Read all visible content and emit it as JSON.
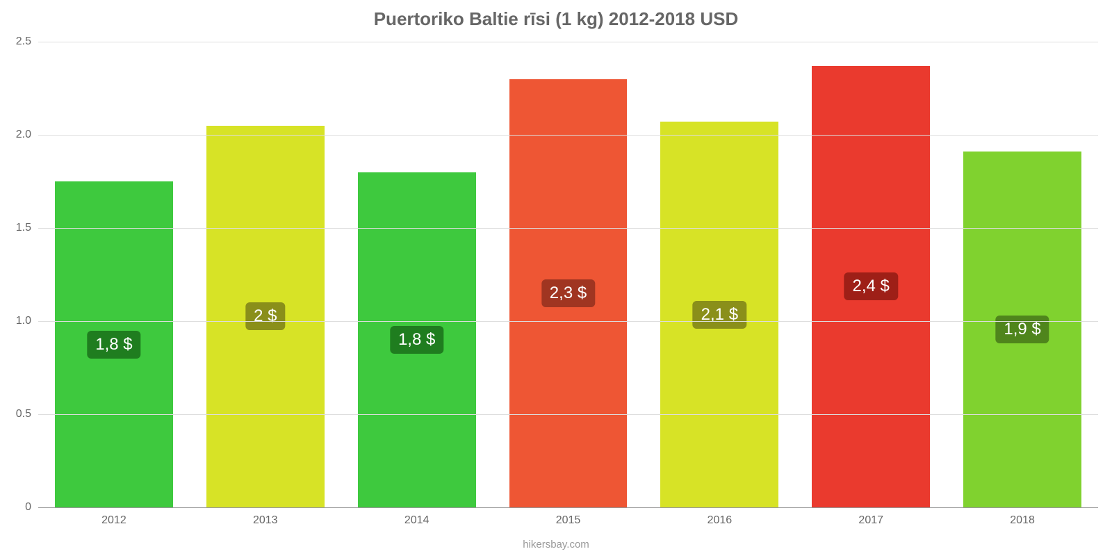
{
  "chart": {
    "type": "bar",
    "title": "Puertoriko Baltie rīsi (1 kg) 2012-2018 USD",
    "title_color": "#666666",
    "title_fontsize": 26,
    "background_color": "#ffffff",
    "grid_color": "#dddddd",
    "axis_color": "#999999",
    "tick_label_color": "#666666",
    "tick_fontsize": 16,
    "bar_label_fontsize": 24,
    "bar_width_ratio": 0.78,
    "ylim": [
      0,
      2.5
    ],
    "yticks": [
      {
        "value": 0,
        "label": "0"
      },
      {
        "value": 0.5,
        "label": "0.5"
      },
      {
        "value": 1.0,
        "label": "1.0"
      },
      {
        "value": 1.5,
        "label": "1.5"
      },
      {
        "value": 2.0,
        "label": "2.0"
      },
      {
        "value": 2.5,
        "label": "2.5"
      }
    ],
    "series": [
      {
        "category": "2012",
        "value": 1.75,
        "label": "1,8 $",
        "bar_color": "#3ec93e",
        "label_bg": "#1f7d1f"
      },
      {
        "category": "2013",
        "value": 2.05,
        "label": "2 $",
        "bar_color": "#d7e326",
        "label_bg": "#8a8f1a"
      },
      {
        "category": "2014",
        "value": 1.8,
        "label": "1,8 $",
        "bar_color": "#3ec93e",
        "label_bg": "#1f7d1f"
      },
      {
        "category": "2015",
        "value": 2.3,
        "label": "2,3 $",
        "bar_color": "#ee5634",
        "label_bg": "#a03521"
      },
      {
        "category": "2016",
        "value": 2.07,
        "label": "2,1 $",
        "bar_color": "#d7e326",
        "label_bg": "#8a8f1a"
      },
      {
        "category": "2017",
        "value": 2.37,
        "label": "2,4 $",
        "bar_color": "#ea3a2e",
        "label_bg": "#9e1f17"
      },
      {
        "category": "2018",
        "value": 1.91,
        "label": "1,9 $",
        "bar_color": "#80d22f",
        "label_bg": "#4f851c"
      }
    ],
    "attribution": "hikersbay.com",
    "attribution_color": "#999999"
  }
}
